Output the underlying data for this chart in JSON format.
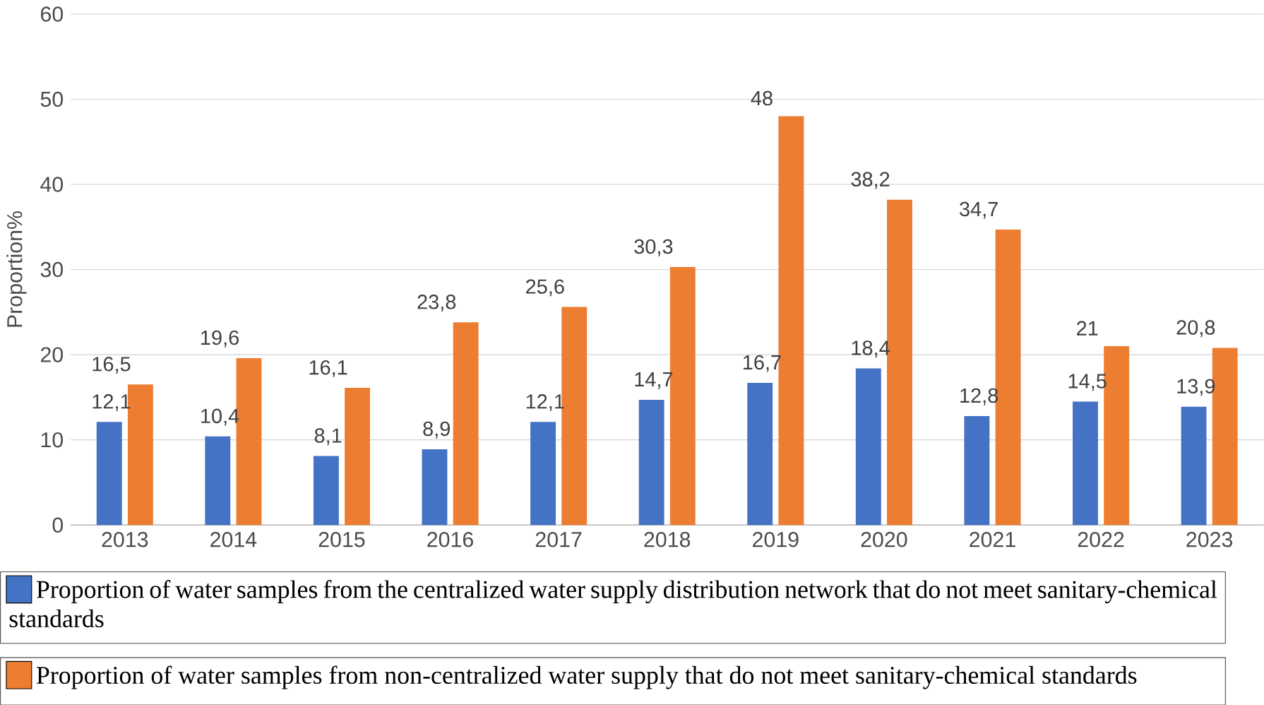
{
  "chart_data": {
    "type": "bar",
    "ylabel": "Proportion%",
    "categories": [
      "2013",
      "2014",
      "2015",
      "2016",
      "2017",
      "2018",
      "2019",
      "2020",
      "2021",
      "2022",
      "2023"
    ],
    "series": [
      {
        "name": "Proportion of water samples from the centralized water supply distribution network that do not meet sanitary-chemical standards",
        "color": "#4472c4",
        "values": [
          12.1,
          10.4,
          8.1,
          8.9,
          12.1,
          14.7,
          16.7,
          18.4,
          12.8,
          14.5,
          13.9
        ],
        "value_labels": [
          "12,1",
          "10,4",
          "8,1",
          "8,9",
          "12,1",
          "14,7",
          "16,7",
          "18,4",
          "12,8",
          "14,5",
          "13,9"
        ]
      },
      {
        "name": "Proportion of water samples from non-centralized water supply that do not meet sanitary-chemical standards",
        "color": "#ed7d31",
        "values": [
          16.5,
          19.6,
          16.1,
          23.8,
          25.6,
          30.3,
          48,
          38.2,
          34.7,
          21,
          20.8
        ],
        "value_labels": [
          "16,5",
          "19,6",
          "16,1",
          "23,8",
          "25,6",
          "30,3",
          "48",
          "38,2",
          "34,7",
          "21",
          "20,8"
        ]
      }
    ],
    "ylim": [
      0,
      60
    ],
    "yticks": [
      0,
      10,
      20,
      30,
      40,
      50,
      60
    ],
    "grid": "y",
    "legend": "bottom"
  }
}
